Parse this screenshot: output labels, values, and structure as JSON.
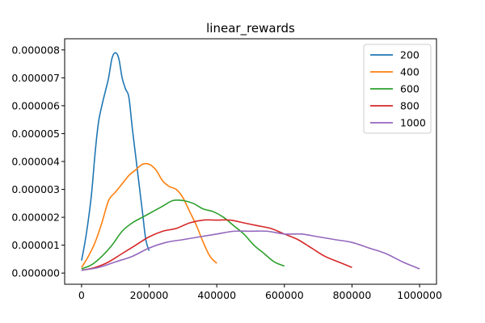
{
  "chart_data": {
    "type": "line",
    "title": "linear_rewards",
    "xlabel": "",
    "ylabel": "",
    "xlim": [
      -50000,
      1050000
    ],
    "ylim": [
      -4e-07,
      8.4e-06
    ],
    "xticks": [
      0,
      200000,
      400000,
      600000,
      800000,
      1000000
    ],
    "xtick_labels": [
      "0",
      "200000",
      "400000",
      "600000",
      "800000",
      "1000000"
    ],
    "yticks": [
      0.0,
      1e-06,
      2e-06,
      3e-06,
      4e-06,
      5e-06,
      6e-06,
      7e-06,
      8e-06
    ],
    "ytick_labels": [
      "0.000000",
      "0.000001",
      "0.000002",
      "0.000003",
      "0.000004",
      "0.000005",
      "0.000006",
      "0.000007",
      "0.000008"
    ],
    "grid": false,
    "legend_position": "top-right",
    "series": [
      {
        "name": "200",
        "color": "#1f77b4",
        "x": [
          0,
          10000,
          20000,
          30000,
          40000,
          50000,
          60000,
          70000,
          80000,
          90000,
          100000,
          110000,
          120000,
          130000,
          140000,
          150000,
          160000,
          170000,
          180000,
          190000,
          200000
        ],
        "y": [
          4.5e-07,
          1.1e-06,
          1.9e-06,
          2.9e-06,
          4.3e-06,
          5.4e-06,
          6e-06,
          6.5e-06,
          7e-06,
          7.7e-06,
          7.9e-06,
          7.7e-06,
          7e-06,
          6.6e-06,
          6.3e-06,
          5.2e-06,
          4.2e-06,
          3.2e-06,
          2.2e-06,
          1.2e-06,
          8e-07
        ]
      },
      {
        "name": "400",
        "color": "#ff7f0e",
        "x": [
          0,
          20000,
          40000,
          60000,
          80000,
          100000,
          120000,
          140000,
          160000,
          180000,
          200000,
          220000,
          240000,
          260000,
          280000,
          300000,
          320000,
          340000,
          360000,
          380000,
          400000
        ],
        "y": [
          2e-07,
          6e-07,
          1.1e-06,
          1.8e-06,
          2.6e-06,
          2.9e-06,
          3.2e-06,
          3.5e-06,
          3.7e-06,
          3.9e-06,
          3.9e-06,
          3.7e-06,
          3.3e-06,
          3.1e-06,
          3e-06,
          2.7e-06,
          2.2e-06,
          1.7e-06,
          1.1e-06,
          6e-07,
          3.5e-07
        ]
      },
      {
        "name": "600",
        "color": "#2ca02c",
        "x": [
          0,
          30000,
          60000,
          90000,
          120000,
          150000,
          180000,
          210000,
          240000,
          270000,
          300000,
          330000,
          360000,
          390000,
          420000,
          450000,
          480000,
          510000,
          540000,
          570000,
          600000
        ],
        "y": [
          1.5e-07,
          3e-07,
          6e-07,
          1e-06,
          1.5e-06,
          1.8e-06,
          2e-06,
          2.2e-06,
          2.4e-06,
          2.6e-06,
          2.6e-06,
          2.5e-06,
          2.3e-06,
          2.2e-06,
          2e-06,
          1.7e-06,
          1.4e-06,
          1e-06,
          7e-07,
          4e-07,
          2.5e-07
        ]
      },
      {
        "name": "800",
        "color": "#d62728",
        "x": [
          0,
          40000,
          80000,
          120000,
          160000,
          200000,
          240000,
          280000,
          320000,
          360000,
          400000,
          440000,
          480000,
          520000,
          560000,
          600000,
          640000,
          680000,
          720000,
          760000,
          800000
        ],
        "y": [
          1e-07,
          2e-07,
          4e-07,
          7e-07,
          1e-06,
          1.3e-06,
          1.5e-06,
          1.6e-06,
          1.8e-06,
          1.9e-06,
          1.9e-06,
          1.9e-06,
          1.8e-06,
          1.7e-06,
          1.6e-06,
          1.4e-06,
          1.2e-06,
          9e-07,
          6e-07,
          4e-07,
          2e-07
        ]
      },
      {
        "name": "1000",
        "color": "#9467bd",
        "x": [
          0,
          50000,
          100000,
          150000,
          200000,
          250000,
          300000,
          350000,
          400000,
          450000,
          500000,
          550000,
          600000,
          650000,
          700000,
          750000,
          800000,
          850000,
          900000,
          950000,
          1000000
        ],
        "y": [
          1e-07,
          2e-07,
          4e-07,
          6e-07,
          9e-07,
          1.1e-06,
          1.2e-06,
          1.3e-06,
          1.4e-06,
          1.5e-06,
          1.5e-06,
          1.5e-06,
          1.4e-06,
          1.4e-06,
          1.3e-06,
          1.2e-06,
          1.1e-06,
          9e-07,
          7e-07,
          4e-07,
          1.5e-07
        ]
      }
    ]
  }
}
